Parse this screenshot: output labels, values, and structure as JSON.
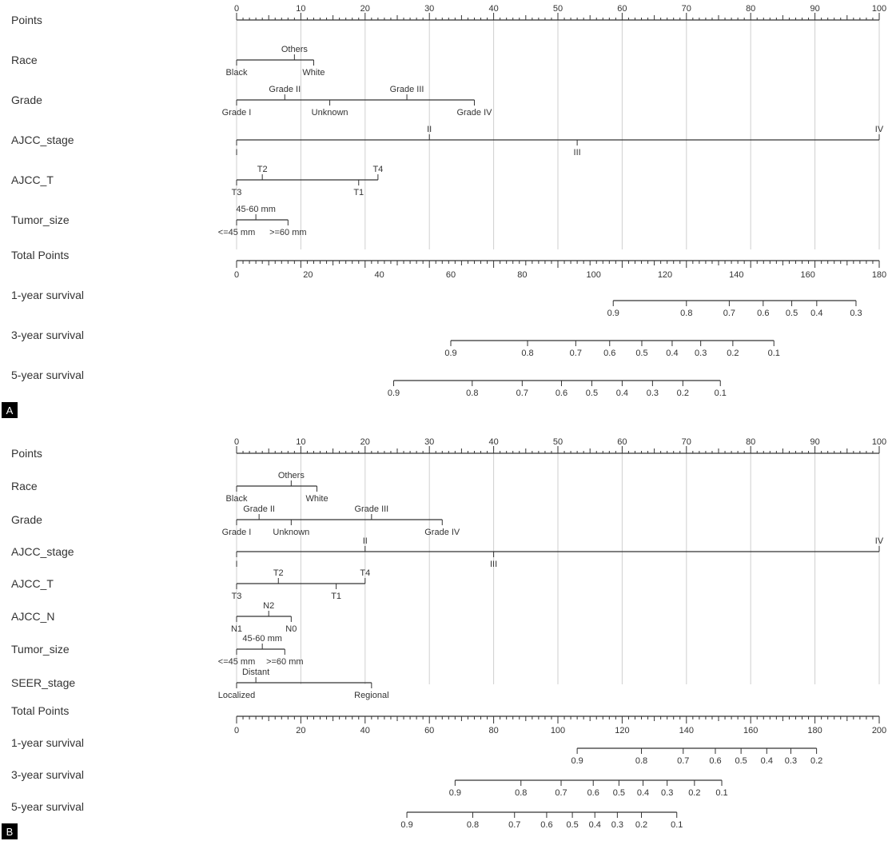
{
  "chart_data": [
    {
      "type": "nomogram",
      "panel_label": "A",
      "points_label": "Points",
      "points_range": [
        0,
        100
      ],
      "points_ticks": [
        0,
        10,
        20,
        30,
        40,
        50,
        60,
        70,
        80,
        90,
        100
      ],
      "variables": [
        {
          "name": "Race",
          "levels": [
            {
              "label": "Black",
              "points": 0,
              "side": "below"
            },
            {
              "label": "Others",
              "points": 9,
              "side": "above"
            },
            {
              "label": "White",
              "points": 12,
              "side": "below"
            }
          ]
        },
        {
          "name": "Grade",
          "levels": [
            {
              "label": "Grade I",
              "points": 0,
              "side": "below"
            },
            {
              "label": "Grade II",
              "points": 7.5,
              "side": "above"
            },
            {
              "label": "Unknown",
              "points": 14.5,
              "side": "below"
            },
            {
              "label": "Grade III",
              "points": 26.5,
              "side": "above"
            },
            {
              "label": "Grade IV",
              "points": 37,
              "side": "below"
            }
          ]
        },
        {
          "name": "AJCC_stage",
          "levels": [
            {
              "label": "I",
              "points": 0,
              "side": "below"
            },
            {
              "label": "II",
              "points": 30,
              "side": "above"
            },
            {
              "label": "III",
              "points": 53,
              "side": "below"
            },
            {
              "label": "IV",
              "points": 100,
              "side": "above"
            }
          ]
        },
        {
          "name": "AJCC_T",
          "levels": [
            {
              "label": "T3",
              "points": 0,
              "side": "below"
            },
            {
              "label": "T2",
              "points": 4,
              "side": "above"
            },
            {
              "label": "T1",
              "points": 19,
              "side": "below"
            },
            {
              "label": "T4",
              "points": 22,
              "side": "above"
            }
          ]
        },
        {
          "name": "Tumor_size",
          "levels": [
            {
              "label": "<=45 mm",
              "points": 0,
              "side": "below"
            },
            {
              "label": "45-60 mm",
              "points": 3,
              "side": "above"
            },
            {
              "label": ">=60 mm",
              "points": 8,
              "side": "below"
            }
          ]
        }
      ],
      "total_points_label": "Total Points",
      "total_points_range": [
        0,
        180
      ],
      "total_points_ticks": [
        0,
        20,
        40,
        60,
        80,
        100,
        120,
        140,
        160,
        180
      ],
      "survival_axes": [
        {
          "name": "1-year survival",
          "values": [
            0.9,
            0.8,
            0.7,
            0.6,
            0.5,
            0.4,
            0.3
          ],
          "total_points": [
            105.5,
            126,
            138,
            147.5,
            155.5,
            162.5,
            173.5
          ]
        },
        {
          "name": "3-year survival",
          "values": [
            0.9,
            0.8,
            0.7,
            0.6,
            0.5,
            0.4,
            0.3,
            0.2,
            0.1
          ],
          "total_points": [
            60,
            81.5,
            95,
            104.5,
            113.5,
            122,
            130,
            139,
            150.5
          ]
        },
        {
          "name": "5-year survival",
          "values": [
            0.9,
            0.8,
            0.7,
            0.6,
            0.5,
            0.4,
            0.3,
            0.2,
            0.1
          ],
          "total_points": [
            44,
            66,
            80,
            91,
            99.5,
            108,
            116.5,
            125,
            135.5
          ]
        }
      ]
    },
    {
      "type": "nomogram",
      "panel_label": "B",
      "points_label": "Points",
      "points_range": [
        0,
        100
      ],
      "points_ticks": [
        0,
        10,
        20,
        30,
        40,
        50,
        60,
        70,
        80,
        90,
        100
      ],
      "variables": [
        {
          "name": "Race",
          "levels": [
            {
              "label": "Black",
              "points": 0,
              "side": "below"
            },
            {
              "label": "Others",
              "points": 8.5,
              "side": "above"
            },
            {
              "label": "White",
              "points": 12.5,
              "side": "below"
            }
          ]
        },
        {
          "name": "Grade",
          "levels": [
            {
              "label": "Grade I",
              "points": 0,
              "side": "below"
            },
            {
              "label": "Grade II",
              "points": 3.5,
              "side": "above"
            },
            {
              "label": "Unknown",
              "points": 8.5,
              "side": "below"
            },
            {
              "label": "Grade III",
              "points": 21,
              "side": "above"
            },
            {
              "label": "Grade IV",
              "points": 32,
              "side": "below"
            }
          ]
        },
        {
          "name": "AJCC_stage",
          "levels": [
            {
              "label": "I",
              "points": 0,
              "side": "below"
            },
            {
              "label": "II",
              "points": 20,
              "side": "above"
            },
            {
              "label": "III",
              "points": 40,
              "side": "below"
            },
            {
              "label": "IV",
              "points": 100,
              "side": "above"
            }
          ]
        },
        {
          "name": "AJCC_T",
          "levels": [
            {
              "label": "T3",
              "points": 0,
              "side": "below"
            },
            {
              "label": "T2",
              "points": 6.5,
              "side": "above"
            },
            {
              "label": "T1",
              "points": 15.5,
              "side": "below"
            },
            {
              "label": "T4",
              "points": 20,
              "side": "above"
            }
          ]
        },
        {
          "name": "AJCC_N",
          "levels": [
            {
              "label": "N1",
              "points": 0,
              "side": "below"
            },
            {
              "label": "N2",
              "points": 5,
              "side": "above"
            },
            {
              "label": "N0",
              "points": 8.5,
              "side": "below"
            }
          ]
        },
        {
          "name": "Tumor_size",
          "levels": [
            {
              "label": "<=45 mm",
              "points": 0,
              "side": "below"
            },
            {
              "label": "45-60 mm",
              "points": 4,
              "side": "above"
            },
            {
              "label": ">=60 mm",
              "points": 7.5,
              "side": "below"
            }
          ]
        },
        {
          "name": "SEER_stage",
          "levels": [
            {
              "label": "Localized",
              "points": 0,
              "side": "below"
            },
            {
              "label": "Distant",
              "points": 3,
              "side": "above"
            },
            {
              "label": "Regional",
              "points": 21,
              "side": "below"
            }
          ]
        }
      ],
      "total_points_label": "Total Points",
      "total_points_range": [
        0,
        200
      ],
      "total_points_ticks": [
        0,
        20,
        40,
        60,
        80,
        100,
        120,
        140,
        160,
        180,
        200
      ],
      "survival_axes": [
        {
          "name": "1-year survival",
          "values": [
            0.9,
            0.8,
            0.7,
            0.6,
            0.5,
            0.4,
            0.3,
            0.2
          ],
          "total_points": [
            106,
            126,
            139,
            149,
            157,
            165,
            172.5,
            180.5
          ]
        },
        {
          "name": "3-year survival",
          "values": [
            0.9,
            0.8,
            0.7,
            0.6,
            0.5,
            0.4,
            0.3,
            0.2,
            0.1
          ],
          "total_points": [
            68,
            88.5,
            101,
            111,
            119,
            126.5,
            134,
            142.5,
            151
          ]
        },
        {
          "name": "5-year survival",
          "values": [
            0.9,
            0.8,
            0.7,
            0.6,
            0.5,
            0.4,
            0.3,
            0.2,
            0.1
          ],
          "total_points": [
            53,
            73.5,
            86.5,
            96.5,
            104.5,
            111.5,
            118.5,
            126,
            137
          ]
        }
      ]
    }
  ]
}
